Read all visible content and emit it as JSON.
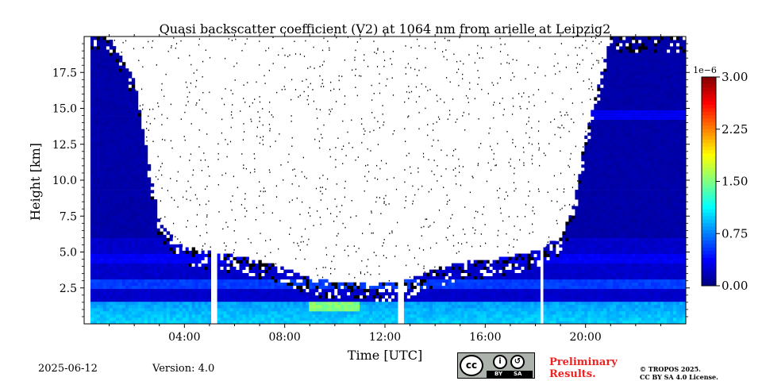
{
  "chart_data": {
    "type": "heatmap",
    "title": "Quasi backscatter coefficient (V2) at 1064 nm from arielle at Leipzig2",
    "xlabel": "Time [UTC]",
    "ylabel": "Height [km]",
    "xlim_hours": [
      0,
      24
    ],
    "ylim_km": [
      0,
      20
    ],
    "xticks": [
      {
        "value": 4,
        "label": "04:00"
      },
      {
        "value": 8,
        "label": "08:00"
      },
      {
        "value": 12,
        "label": "12:00"
      },
      {
        "value": 16,
        "label": "16:00"
      },
      {
        "value": 20,
        "label": "20:00"
      }
    ],
    "yticks": [
      {
        "value": 2.5,
        "label": "2.5"
      },
      {
        "value": 5.0,
        "label": "5.0"
      },
      {
        "value": 7.5,
        "label": "7.5"
      },
      {
        "value": 10.0,
        "label": "10.0"
      },
      {
        "value": 12.5,
        "label": "12.5"
      },
      {
        "value": 15.0,
        "label": "15.0"
      },
      {
        "value": 17.5,
        "label": "17.5"
      }
    ],
    "colorbar": {
      "min": 0,
      "max": 3.0,
      "exponent_label": "1e−6",
      "ticks": [
        {
          "value": 0,
          "label": "0.00"
        },
        {
          "value": 0.75,
          "label": "0.75"
        },
        {
          "value": 1.5,
          "label": "1.50"
        },
        {
          "value": 2.25,
          "label": "2.25"
        },
        {
          "value": 3.0,
          "label": "3.00"
        }
      ],
      "colormap": "jet"
    },
    "data_gaps_hours": [
      [
        0.05,
        0.25
      ],
      [
        5.05,
        5.25
      ],
      [
        12.45,
        12.75
      ],
      [
        18.15,
        18.3
      ]
    ],
    "noise_floor_height_km_by_hour": [
      [
        0,
        20
      ],
      [
        1,
        20
      ],
      [
        2,
        17
      ],
      [
        3,
        7
      ],
      [
        4,
        5.4
      ],
      [
        5,
        5.0
      ],
      [
        6,
        4.8
      ],
      [
        7,
        4.4
      ],
      [
        8,
        3.9
      ],
      [
        9,
        3.2
      ],
      [
        10,
        2.9
      ],
      [
        11,
        2.9
      ],
      [
        12,
        2.8
      ],
      [
        13,
        3.1
      ],
      [
        14,
        3.8
      ],
      [
        15,
        4.3
      ],
      [
        16,
        4.4
      ],
      [
        17,
        4.7
      ],
      [
        18,
        5.1
      ],
      [
        19,
        6.0
      ],
      [
        19.5,
        8.0
      ],
      [
        20,
        13
      ],
      [
        21,
        20
      ],
      [
        22,
        20
      ],
      [
        23,
        20
      ],
      [
        24,
        20
      ]
    ],
    "layers": [
      {
        "name": "boundary-layer",
        "top_km": 1.5,
        "typical_value": 1.0,
        "peak_value": 1.6,
        "peak_hours": [
          9,
          11
        ]
      },
      {
        "name": "residual-layer-1",
        "height_km": 2.8,
        "typical_value": 0.55
      },
      {
        "name": "residual-layer-2",
        "height_km": 4.6,
        "typical_value": 0.35
      },
      {
        "name": "high-cloud",
        "height_km": 14.5,
        "hours": [
          20,
          24
        ],
        "typical_value": 0.3
      }
    ]
  },
  "footer": {
    "date": "2025-06-12",
    "version": "Version: 4.0",
    "license_badge": {
      "cc": "cc",
      "by": "BY",
      "sa": "SA"
    },
    "preliminary_line1": "Preliminary",
    "preliminary_line2": "Results.",
    "copyright_line1": "© TROPOS 2025.",
    "copyright_line2": "CC BY SA 4.0 License."
  },
  "colors": {
    "preliminary": "#ee2222",
    "badge_bg": "#aab2ab"
  }
}
